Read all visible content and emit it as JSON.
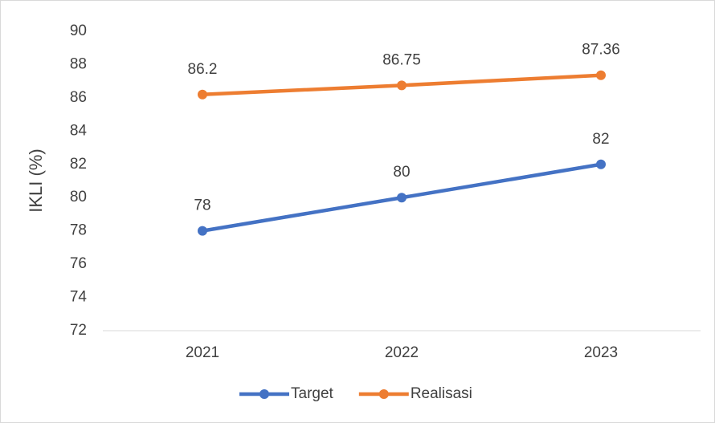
{
  "chart_data": {
    "type": "line",
    "y_label": "IKLI (%)",
    "categories": [
      "2021",
      "2022",
      "2023"
    ],
    "series": [
      {
        "name": "Target",
        "color": "#4472c4",
        "values": [
          78,
          80,
          82
        ]
      },
      {
        "name": "Realisasi",
        "color": "#ed7d31",
        "values": [
          86.2,
          86.75,
          87.36
        ]
      }
    ],
    "ylim": [
      72,
      90
    ],
    "yticks": [
      72,
      74,
      76,
      78,
      80,
      82,
      84,
      86,
      88,
      90
    ],
    "grid": false,
    "legend": "bottom"
  }
}
